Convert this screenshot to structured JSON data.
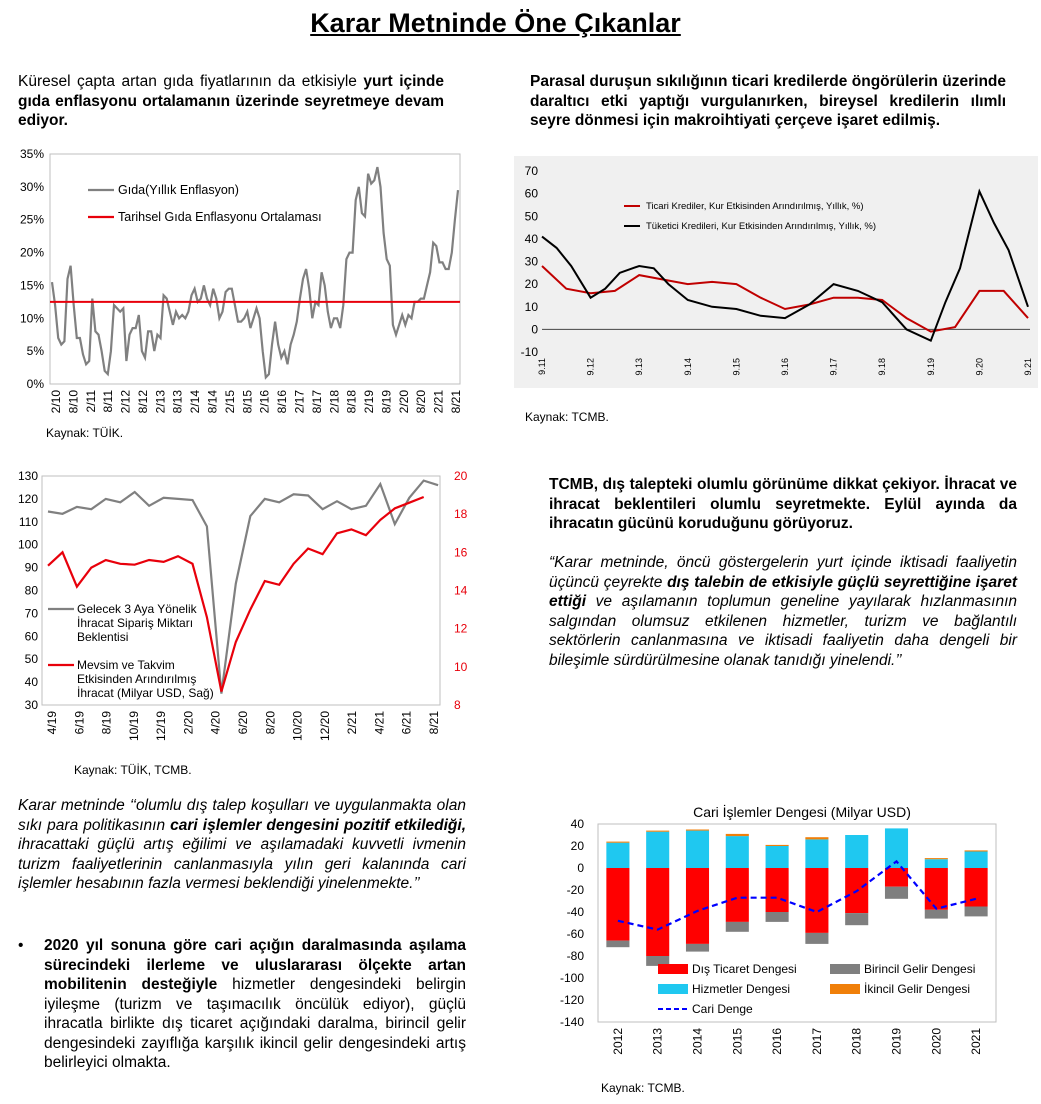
{
  "page_title": "Karar Metninde Öne Çıkanlar",
  "colors": {
    "red": "#e8000b",
    "gray": "#808080",
    "black": "#000000",
    "blue": "#1010ff",
    "cyan": "#1fc8f0",
    "orange": "#f07f09",
    "panel_bg": "#f0f0f0"
  },
  "sections": {
    "food_text": {
      "pre": "Küresel  çapta artan gıda fiyatlarının da etkisiyle ",
      "bold": "yurt içinde gıda enflasyonu ortalamanın üzerinde seyretmeye devam ediyor."
    },
    "credit_text": "Parasal duruşun sıkılığının ticari kredilerde öngörülerin üzerinde daraltıcı etki yaptığı vurgulanırken, bireysel kredilerin ılımlı seyre dönmesi için makroihtiyati çerçeve işaret edilmiş.",
    "export_text": "TCMB, dış talepteki olumlu görünüme dikkat çekiyor. İhracat ve ihracat beklentileri olumlu seyretmekte. Eylül ayında da ihracatın gücünü koruduğunu görüyoruz.",
    "quote_text": {
      "p1": "“Karar metninde, öncü göstergelerin yurt içinde iktisadi faaliyetin üçüncü çeyrekte ",
      "b1": "dış talebin de etkisiyle güçlü seyrettiğine işaret ettiği",
      "p2": " ve aşılamanın toplumun geneline yayılarak hızlanmasının salgından olumsuz etkilenen hizmetler, turizm ve bağlantılı sektörlerin canlanmasına ve iktisadi faaliyetin daha dengeli bir bileşimle sürdürülmesine olanak tanıdığı yinelendi.’’"
    },
    "current_account_text": {
      "p1": "Karar metninde ‘‘olumlu dış talep koşulları ve uygulanmakta olan sıkı para politikasının ",
      "b1": "cari işlemler dengesini pozitif etkilediği,",
      "p2": " ihracattaki güçlü artış eğilimi ve aşılamadaki kuvvetli ivmenin turizm faaliyetlerinin canlanmasıyla yılın geri kalanında cari işlemler hesabının fazla vermesi beklendiği yinelenmekte.’’"
    },
    "bullet": {
      "bold": "2020 yıl sonuna göre cari açığın daralmasında aşılama sürecindeki ilerleme ve uluslararası ölçekte artan mobilitenin desteğiyle",
      "rest": " hizmetler dengesindeki belirgin iyileşme (turizm ve taşımacılık öncülük ediyor), güçlü ihracatla birlikte dış ticaret açığındaki daralma, birincil gelir dengesindeki zayıflığa karşılık ikincil gelir dengesindeki artış belirleyici olmakta."
    }
  },
  "sources": {
    "food": "Kaynak: TÜİK.",
    "credit": "Kaynak: TCMB.",
    "export": "Kaynak: TÜİK, TCMB.",
    "current": "Kaynak: TCMB."
  },
  "chart_data": [
    {
      "id": "food_inflation",
      "type": "line",
      "title": "",
      "ylim": [
        0,
        35
      ],
      "yticks": [
        "0%",
        "5%",
        "10%",
        "15%",
        "20%",
        "25%",
        "30%",
        "35%"
      ],
      "xticks": [
        "2/10",
        "8/10",
        "2/11",
        "8/11",
        "2/12",
        "8/12",
        "2/13",
        "8/13",
        "2/14",
        "8/14",
        "2/15",
        "8/15",
        "2/16",
        "8/16",
        "2/17",
        "8/17",
        "2/18",
        "8/18",
        "2/19",
        "8/19",
        "2/20",
        "8/20",
        "2/21",
        "8/21"
      ],
      "legend": [
        "Gıda(Yıllık Enflasyon)",
        "Tarihsel Gıda Enflasyonu Ortalaması"
      ],
      "series": [
        {
          "name": "Gıda(Yıllık Enflasyon)",
          "color": "#808080",
          "values": [
            15.5,
            12,
            7,
            6,
            6.5,
            16,
            18,
            12,
            7,
            7,
            4.5,
            3,
            3.5,
            13,
            8,
            7.5,
            5,
            2,
            1.5,
            5,
            12,
            11.5,
            11,
            11.5,
            3.5,
            7.5,
            8.5,
            8.5,
            10.5,
            5,
            4,
            8,
            8,
            5,
            7.5,
            7,
            13.5,
            13,
            11,
            9,
            11,
            10,
            10.5,
            10,
            11,
            13.5,
            14.5,
            12.5,
            13,
            15,
            13,
            12,
            14.5,
            13,
            10,
            11,
            14,
            14.5,
            14.5,
            12,
            9.5,
            9.5,
            10,
            11,
            8.5,
            10,
            11.5,
            10,
            5,
            1,
            1.5,
            6,
            9.5,
            6,
            4,
            5,
            3,
            6,
            7.5,
            9.5,
            13,
            16,
            17.5,
            14.5,
            10,
            12.5,
            12,
            17,
            15,
            11,
            8.5,
            10,
            10,
            8.5,
            12,
            19,
            20,
            20,
            28,
            30,
            26,
            25.5,
            32,
            30.5,
            31,
            33,
            30,
            23,
            19,
            18,
            9,
            7.5,
            9,
            10.5,
            9,
            10.5,
            10,
            12.5,
            12.5,
            13,
            13,
            15,
            17,
            21.5,
            21,
            18.5,
            18.5,
            17.5,
            17.5,
            20,
            25,
            29.5
          ]
        },
        {
          "name": "Tarihsel Gıda Enflasyonu Ortalaması",
          "color": "#e8000b",
          "values": [
            12.5
          ]
        }
      ]
    },
    {
      "id": "credit_growth",
      "type": "line",
      "title": "",
      "ylim": [
        -10,
        70
      ],
      "yticks": [
        "-10",
        "0",
        "10",
        "20",
        "30",
        "40",
        "50",
        "60",
        "70"
      ],
      "xticks": [
        "9.11",
        "9.12",
        "9.13",
        "9.14",
        "9.15",
        "9.16",
        "9.17",
        "9.18",
        "9.19",
        "9.20",
        "9.21"
      ],
      "legend": [
        "Ticari Krediler, Kur Etkisinden Arındırılmış, Yıllık, %)",
        "Tüketici Kredileri, Kur Etkisinden Arındırılmış, Yıllık, %)"
      ],
      "series": [
        {
          "name": "Ticari Krediler, Kur Etkisinden Arındırılmış, Yıllık, %)",
          "color": "#c00000",
          "x": [
            9.11,
            9.115,
            9.12,
            9.125,
            9.13,
            9.135,
            9.14,
            9.145,
            9.15,
            9.155,
            9.16,
            9.165,
            9.17,
            9.175,
            9.18,
            9.185,
            9.19,
            9.195,
            9.2,
            9.205,
            9.21
          ],
          "values": [
            28,
            18,
            16,
            17,
            24,
            22,
            20,
            21,
            20,
            14,
            9,
            11,
            14,
            14,
            13,
            5,
            -1,
            1,
            17,
            17,
            5
          ]
        },
        {
          "name": "Tüketici Kredileri, Kur Etkisinden Arındırılmış, Yıllık, %)",
          "color": "#000000",
          "x": [
            9.11,
            9.113,
            9.116,
            9.12,
            9.123,
            9.126,
            9.13,
            9.133,
            9.136,
            9.14,
            9.145,
            9.15,
            9.155,
            9.16,
            9.165,
            9.17,
            9.175,
            9.18,
            9.185,
            9.19,
            9.193,
            9.196,
            9.2,
            9.203,
            9.206,
            9.21
          ],
          "values": [
            41,
            36,
            28,
            14,
            18,
            25,
            28,
            27,
            20,
            13,
            10,
            9,
            6,
            5,
            11,
            20,
            17,
            12,
            0,
            -5,
            12,
            27,
            61,
            47,
            35,
            10
          ]
        }
      ]
    },
    {
      "id": "exports",
      "type": "line",
      "title": "",
      "ylim_left": [
        30,
        130
      ],
      "ylim_right": [
        8,
        20
      ],
      "yticks_left": [
        "30",
        "40",
        "50",
        "60",
        "70",
        "80",
        "90",
        "100",
        "110",
        "120",
        "130"
      ],
      "yticks_right": [
        "8",
        "10",
        "12",
        "14",
        "16",
        "18",
        "20"
      ],
      "xticks": [
        "4/19",
        "6/19",
        "8/19",
        "10/19",
        "12/19",
        "2/20",
        "4/20",
        "6/20",
        "8/20",
        "10/20",
        "12/20",
        "2/21",
        "4/21",
        "6/21",
        "8/21"
      ],
      "legend": [
        "Gelecek 3 Aya Yönelik İhracat Sipariş Miktarı Beklentisi",
        "Mevsim ve Takvim Etkisinden Arındırılmış İhracat (Milyar USD, Sağ)"
      ],
      "series": [
        {
          "name": "Gelecek 3 Aya Yönelik İhracat Sipariş Miktarı Beklentisi",
          "color": "#808080",
          "axis": "left",
          "values": [
            114.5,
            113.5,
            116.5,
            115.5,
            120,
            118.5,
            123,
            117,
            120.5,
            120,
            119.5,
            108,
            35,
            83,
            112.5,
            120,
            118.5,
            122,
            121.5,
            115.5,
            119,
            115.5,
            117,
            126.5,
            109,
            120.5,
            128,
            126
          ]
        },
        {
          "name": "Mevsim ve Takvim Etkisinden Arındırılmış İhracat (Milyar USD, Sağ)",
          "color": "#e8000b",
          "axis": "right",
          "values": [
            15.3,
            16,
            14.2,
            15.2,
            15.6,
            15.4,
            15.35,
            15.6,
            15.5,
            15.8,
            15.4,
            12.6,
            8.7,
            11.3,
            13,
            14.5,
            14.3,
            15.4,
            16.2,
            15.9,
            17,
            17.2,
            16.9,
            17.7,
            18.3,
            18.6,
            18.9
          ]
        }
      ]
    },
    {
      "id": "current_account",
      "type": "bar",
      "title": "Cari İşlemler Dengesi (Milyar USD)",
      "ylim": [
        -140,
        40
      ],
      "yticks": [
        "40",
        "20",
        "0",
        "-20",
        "-40",
        "-60",
        "-80",
        "-100",
        "-120",
        "-140"
      ],
      "categories": [
        "2012",
        "2013",
        "2014",
        "2015",
        "2016",
        "2017",
        "2018",
        "2019",
        "2020",
        "2021"
      ],
      "legend": [
        "Dış Ticaret Dengesi",
        "Birincil Gelir Dengesi",
        "Hizmetler Dengesi",
        "İkincil Gelir Dengesi",
        "Cari Denge"
      ],
      "series": [
        {
          "name": "Dış Ticaret Dengesi",
          "color": "#ff0000",
          "values": [
            -66,
            -80,
            -69,
            -49,
            -40,
            -59,
            -41,
            -17,
            -38,
            -35
          ]
        },
        {
          "name": "Birincil Gelir Dengesi",
          "color": "#7f7f7f",
          "values": [
            -6,
            -9,
            -7,
            -9,
            -9,
            -10,
            -11,
            -11,
            -8,
            -9
          ]
        },
        {
          "name": "Hizmetler Dengesi",
          "color": "#1fc8f0",
          "values": [
            23,
            33,
            34,
            29,
            20,
            26,
            30,
            36,
            8,
            15
          ]
        },
        {
          "name": "İkincil Gelir Dengesi",
          "color": "#f07f09",
          "values": [
            1,
            1,
            1,
            2,
            1,
            2,
            0,
            0,
            1,
            1
          ]
        },
        {
          "name": "Cari Denge",
          "color": "#0000ff",
          "values": [
            -48,
            -56,
            -39,
            -27,
            -27,
            -40,
            -21,
            6,
            -37,
            -28
          ]
        }
      ]
    }
  ]
}
